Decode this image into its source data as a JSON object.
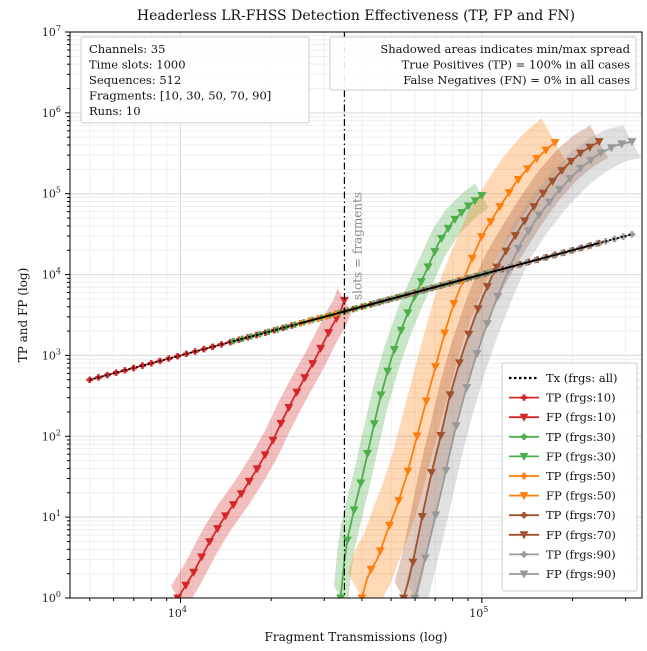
{
  "chart_data": {
    "type": "line",
    "title": "Headerless LR-FHSS Detection Effectiveness (TP, FP and FN)",
    "xlabel": "Fragment Transmissions (log)",
    "ylabel": "TP and FP (log)",
    "xscale": "log",
    "yscale": "log",
    "xlim": [
      4300,
      340000
    ],
    "ylim": [
      1,
      10000000
    ],
    "x_ticks": [
      {
        "v": 10000,
        "m": "10",
        "e": "4"
      },
      {
        "v": 100000,
        "m": "10",
        "e": "5"
      }
    ],
    "y_ticks": [
      {
        "v": 1,
        "m": "10",
        "e": "0"
      },
      {
        "v": 10,
        "m": "10",
        "e": "1"
      },
      {
        "v": 100,
        "m": "10",
        "e": "2"
      },
      {
        "v": 1000,
        "m": "10",
        "e": "3"
      },
      {
        "v": 10000,
        "m": "10",
        "e": "4"
      },
      {
        "v": 100000,
        "m": "10",
        "e": "5"
      },
      {
        "v": 1000000,
        "m": "10",
        "e": "6"
      },
      {
        "v": 10000000,
        "m": "10",
        "e": "7"
      }
    ],
    "grid": true,
    "legend_position": "bottom-right",
    "info_box_lines": [
      "Channels: 35",
      "Time slots: 1000",
      "Sequences: 512",
      "Fragments: [10, 30, 50, 70, 90]",
      "Runs: 10"
    ],
    "note_box_lines": [
      "Shadowed areas indicates min/max spread",
      "True Positives (TP) = 100% in all cases",
      "False Negatives (FN) = 0% in all cases"
    ],
    "vline": {
      "x": 35000,
      "label": "slots = fragments"
    },
    "legend": [
      {
        "label": "Tx (frgs: all)",
        "color": "#000000",
        "kind": "dotted"
      },
      {
        "label": "TP (frgs:10)",
        "color": "#d62728",
        "kind": "plus"
      },
      {
        "label": "FP (frgs:10)",
        "color": "#d62728",
        "kind": "tri"
      },
      {
        "label": "TP (frgs:30)",
        "color": "#4daf4a",
        "kind": "plus"
      },
      {
        "label": "FP (frgs:30)",
        "color": "#4daf4a",
        "kind": "tri"
      },
      {
        "label": "TP (frgs:50)",
        "color": "#ff7f0e",
        "kind": "plus"
      },
      {
        "label": "FP (frgs:50)",
        "color": "#ff7f0e",
        "kind": "tri"
      },
      {
        "label": "TP (frgs:70)",
        "color": "#a0522d",
        "kind": "plus"
      },
      {
        "label": "FP (frgs:70)",
        "color": "#a0522d",
        "kind": "tri"
      },
      {
        "label": "TP (frgs:90)",
        "color": "#999999",
        "kind": "plus"
      },
      {
        "label": "FP (frgs:90)",
        "color": "#999999",
        "kind": "tri"
      }
    ],
    "groups": [
      {
        "frags": 10,
        "color": "#d62728",
        "tp_x": [
          5000,
          35000
        ],
        "fp_points": [
          [
            9800,
            1
          ],
          [
            11000,
            2
          ],
          [
            12500,
            5
          ],
          [
            14000,
            10
          ],
          [
            16000,
            20
          ],
          [
            18000,
            40
          ],
          [
            20000,
            80
          ],
          [
            22000,
            170
          ],
          [
            24000,
            320
          ],
          [
            26000,
            550
          ],
          [
            28000,
            900
          ],
          [
            30000,
            1500
          ],
          [
            32000,
            2400
          ],
          [
            34000,
            3500
          ],
          [
            35000,
            4800
          ]
        ],
        "spread": 0.15
      },
      {
        "frags": 30,
        "color": "#4daf4a",
        "tp_x": [
          15000,
          105000
        ],
        "fp_points": [
          [
            34000,
            1
          ],
          [
            35000,
            3
          ],
          [
            36000,
            6
          ],
          [
            38000,
            14
          ],
          [
            40000,
            30
          ],
          [
            43000,
            100
          ],
          [
            46000,
            300
          ],
          [
            50000,
            900
          ],
          [
            55000,
            2500
          ],
          [
            60000,
            5500
          ],
          [
            66000,
            12000
          ],
          [
            72000,
            25000
          ],
          [
            80000,
            45000
          ],
          [
            90000,
            70000
          ],
          [
            100000,
            95000
          ]
        ],
        "spread": 0.15
      },
      {
        "frags": 50,
        "color": "#ff7f0e",
        "tp_x": [
          25000,
          175000
        ],
        "fp_points": [
          [
            40000,
            1
          ],
          [
            42000,
            2
          ],
          [
            45000,
            3
          ],
          [
            48000,
            6
          ],
          [
            52000,
            13
          ],
          [
            56000,
            30
          ],
          [
            60000,
            80
          ],
          [
            65000,
            250
          ],
          [
            70000,
            700
          ],
          [
            75000,
            1800
          ],
          [
            80000,
            4000
          ],
          [
            90000,
            12000
          ],
          [
            100000,
            30000
          ],
          [
            115000,
            70000
          ],
          [
            130000,
            140000
          ],
          [
            150000,
            260000
          ],
          [
            165000,
            360000
          ],
          [
            175000,
            430000
          ]
        ],
        "spread": 0.3
      },
      {
        "frags": 70,
        "color": "#a0522d",
        "tp_x": [
          35000,
          245000
        ],
        "fp_points": [
          [
            55000,
            1
          ],
          [
            58000,
            2
          ],
          [
            61000,
            5
          ],
          [
            64000,
            12
          ],
          [
            68000,
            35
          ],
          [
            73000,
            100
          ],
          [
            78000,
            300
          ],
          [
            85000,
            900
          ],
          [
            92000,
            2200
          ],
          [
            100000,
            5000
          ],
          [
            110000,
            11000
          ],
          [
            125000,
            25000
          ],
          [
            145000,
            60000
          ],
          [
            165000,
            120000
          ],
          [
            190000,
            220000
          ],
          [
            215000,
            330000
          ],
          [
            245000,
            440000
          ]
        ],
        "spread": 0.2
      },
      {
        "frags": 90,
        "color": "#999999",
        "tp_x": [
          45000,
          315000
        ],
        "fp_points": [
          [
            60000,
            1
          ],
          [
            63000,
            2
          ],
          [
            66000,
            4
          ],
          [
            70000,
            10
          ],
          [
            75000,
            30
          ],
          [
            80000,
            90
          ],
          [
            87000,
            300
          ],
          [
            95000,
            900
          ],
          [
            103000,
            2200
          ],
          [
            112000,
            5000
          ],
          [
            122000,
            11000
          ],
          [
            135000,
            25000
          ],
          [
            155000,
            55000
          ],
          [
            180000,
            110000
          ],
          [
            210000,
            200000
          ],
          [
            245000,
            310000
          ],
          [
            280000,
            400000
          ],
          [
            315000,
            440000
          ]
        ],
        "spread": 0.2
      }
    ]
  }
}
